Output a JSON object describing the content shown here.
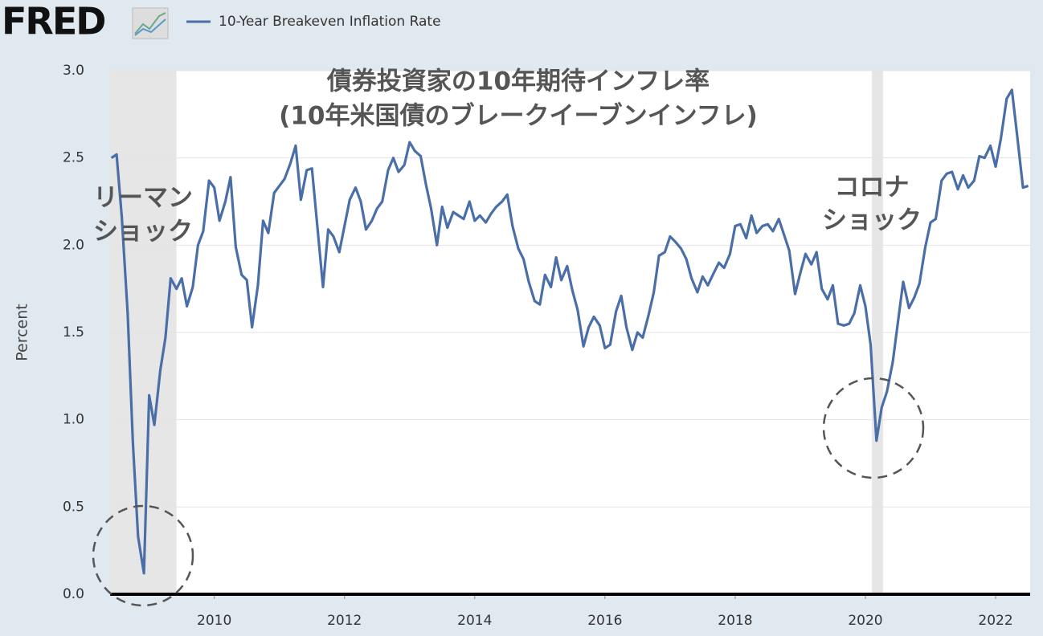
{
  "chart_data": {
    "type": "line",
    "source_logo": "FRED",
    "ylabel": "Percent",
    "series": [
      {
        "name": "10-Year Breakeven Inflation Rate",
        "color": "#4a6ea8",
        "x": [
          2008.42,
          2008.5,
          2008.58,
          2008.67,
          2008.75,
          2008.83,
          2008.92,
          2009,
          2009.08,
          2009.17,
          2009.25,
          2009.33,
          2009.42,
          2009.5,
          2009.58,
          2009.67,
          2009.75,
          2009.83,
          2009.92,
          2010,
          2010.08,
          2010.17,
          2010.25,
          2010.33,
          2010.42,
          2010.5,
          2010.58,
          2010.67,
          2010.75,
          2010.83,
          2010.92,
          2011,
          2011.08,
          2011.17,
          2011.25,
          2011.33,
          2011.42,
          2011.5,
          2011.58,
          2011.67,
          2011.75,
          2011.83,
          2011.92,
          2012,
          2012.08,
          2012.17,
          2012.25,
          2012.33,
          2012.42,
          2012.5,
          2012.58,
          2012.67,
          2012.75,
          2012.83,
          2012.92,
          2013,
          2013.08,
          2013.17,
          2013.25,
          2013.33,
          2013.42,
          2013.5,
          2013.58,
          2013.67,
          2013.75,
          2013.83,
          2013.92,
          2014,
          2014.08,
          2014.17,
          2014.25,
          2014.33,
          2014.42,
          2014.5,
          2014.58,
          2014.67,
          2014.75,
          2014.83,
          2014.92,
          2015,
          2015.08,
          2015.17,
          2015.25,
          2015.33,
          2015.42,
          2015.5,
          2015.58,
          2015.67,
          2015.75,
          2015.83,
          2015.92,
          2016,
          2016.08,
          2016.17,
          2016.25,
          2016.33,
          2016.42,
          2016.5,
          2016.58,
          2016.67,
          2016.75,
          2016.83,
          2016.92,
          2017,
          2017.08,
          2017.17,
          2017.25,
          2017.33,
          2017.42,
          2017.5,
          2017.58,
          2017.67,
          2017.75,
          2017.83,
          2017.92,
          2018,
          2018.08,
          2018.17,
          2018.25,
          2018.33,
          2018.42,
          2018.5,
          2018.58,
          2018.67,
          2018.75,
          2018.83,
          2018.92,
          2019,
          2019.08,
          2019.17,
          2019.25,
          2019.33,
          2019.42,
          2019.5,
          2019.58,
          2019.67,
          2019.75,
          2019.83,
          2019.92,
          2020,
          2020.08,
          2020.17,
          2020.25,
          2020.33,
          2020.42,
          2020.5,
          2020.58,
          2020.67,
          2020.75,
          2020.83,
          2020.92,
          2021,
          2021.08,
          2021.17,
          2021.25,
          2021.33,
          2021.42,
          2021.5,
          2021.58,
          2021.67,
          2021.75,
          2021.83,
          2021.92,
          2022,
          2022.08,
          2022.17,
          2022.25,
          2022.33,
          2022.42,
          2022.5
        ],
        "values": [
          2.5,
          2.52,
          2.16,
          1.61,
          0.87,
          0.33,
          0.12,
          1.14,
          0.97,
          1.28,
          1.47,
          1.81,
          1.75,
          1.81,
          1.65,
          1.76,
          2.0,
          2.08,
          2.37,
          2.33,
          2.14,
          2.25,
          2.39,
          1.99,
          1.83,
          1.8,
          1.53,
          1.77,
          2.14,
          2.07,
          2.3,
          2.34,
          2.38,
          2.47,
          2.57,
          2.26,
          2.43,
          2.44,
          2.12,
          1.76,
          2.09,
          2.05,
          1.96,
          2.11,
          2.26,
          2.33,
          2.25,
          2.09,
          2.14,
          2.21,
          2.25,
          2.43,
          2.5,
          2.42,
          2.46,
          2.59,
          2.54,
          2.51,
          2.35,
          2.21,
          2.0,
          2.22,
          2.1,
          2.19,
          2.17,
          2.15,
          2.25,
          2.14,
          2.17,
          2.13,
          2.18,
          2.22,
          2.25,
          2.29,
          2.11,
          1.98,
          1.92,
          1.79,
          1.68,
          1.66,
          1.83,
          1.76,
          1.93,
          1.8,
          1.88,
          1.74,
          1.63,
          1.42,
          1.53,
          1.59,
          1.54,
          1.41,
          1.43,
          1.62,
          1.71,
          1.53,
          1.4,
          1.5,
          1.47,
          1.6,
          1.73,
          1.94,
          1.96,
          2.05,
          2.02,
          1.98,
          1.92,
          1.81,
          1.73,
          1.82,
          1.77,
          1.84,
          1.9,
          1.87,
          1.95,
          2.11,
          2.12,
          2.04,
          2.17,
          2.07,
          2.11,
          2.12,
          2.08,
          2.15,
          2.06,
          1.97,
          1.72,
          1.84,
          1.95,
          1.89,
          1.96,
          1.75,
          1.69,
          1.77,
          1.55,
          1.54,
          1.55,
          1.61,
          1.77,
          1.65,
          1.43,
          0.88,
          1.07,
          1.16,
          1.33,
          1.56,
          1.79,
          1.64,
          1.7,
          1.78,
          1.99,
          2.13,
          2.15,
          2.37,
          2.41,
          2.42,
          2.32,
          2.4,
          2.33,
          2.37,
          2.51,
          2.5,
          2.57,
          2.45,
          2.61,
          2.84,
          2.89,
          2.63,
          2.33,
          2.34
        ]
      }
    ],
    "shaded_periods": [
      [
        2008.4,
        2009.42
      ],
      [
        2020.1,
        2020.27
      ]
    ],
    "shade_color": "#e6e6e6",
    "xlim": [
      2008.4,
      2022.53
    ],
    "xticks": [
      2010,
      2012,
      2014,
      2016,
      2018,
      2020,
      2022
    ],
    "ylim": [
      0,
      3
    ],
    "yticks": [
      {
        "value": 0,
        "label": "0.0"
      },
      0.5,
      {
        "value": 1,
        "label": "1.0"
      },
      1.5,
      {
        "value": 2,
        "label": "2.0"
      },
      2.5,
      {
        "value": 3,
        "label": "3.0"
      }
    ],
    "grid": true,
    "annotations": [
      {
        "lines": [
          "債券投資家の10年期待インフレ率",
          "(10年米国債のブレークイーブンインフレ)"
        ]
      },
      {
        "lines": [
          "リーマン",
          "ショック"
        ]
      },
      {
        "lines": [
          "コロナ",
          "ショック"
        ]
      }
    ]
  }
}
